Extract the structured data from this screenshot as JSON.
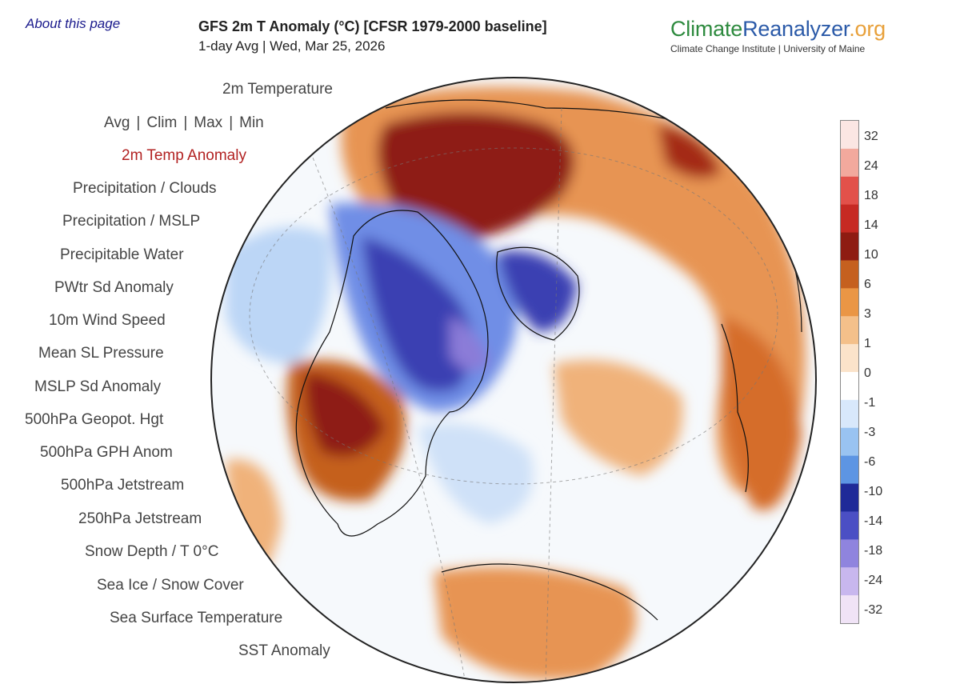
{
  "about": "About this page",
  "header": {
    "title": "GFS 2m T Anomaly (°C) [CFSR 1979-2000 baseline]",
    "subtitle": "1-day Avg | Wed, Mar 25, 2026"
  },
  "logo": {
    "climate": "Climate",
    "reanalyzer": "Reanalyzer",
    "org": ".org",
    "sub": "Climate Change Institute | University of Maine"
  },
  "menu": {
    "temperature": "2m Temperature",
    "avg": "Avg",
    "clim": "Clim",
    "max": "Max",
    "min": "Min",
    "sep": "|",
    "items": [
      "2m Temp Anomaly",
      "Precipitation / Clouds",
      "Precipitation / MSLP",
      "Precipitable Water",
      "PWtr Sd Anomaly",
      "10m Wind Speed",
      "Mean SL Pressure",
      "MSLP Sd Anomaly",
      "500hPa Geopot. Hgt",
      "500hPa GPH Anom",
      "500hPa Jetstream",
      "250hPa Jetstream",
      "Snow Depth / T 0°C",
      "Sea Ice / Snow Cover",
      "Sea Surface Temperature",
      "SST Anomaly"
    ]
  },
  "legend": {
    "labels": [
      "32",
      "24",
      "18",
      "14",
      "10",
      "6",
      "3",
      "1",
      "0",
      "-1",
      "-3",
      "-6",
      "-10",
      "-14",
      "-18",
      "-24",
      "-32"
    ],
    "colors": [
      "#fbe6e3",
      "#f2a99d",
      "#e2514a",
      "#c62a23",
      "#8e1c12",
      "#c5601f",
      "#ea9645",
      "#f4c08a",
      "#fbe3ca",
      "#ffffff",
      "#d8e8fb",
      "#99c3f1",
      "#5d95e3",
      "#1f2a98",
      "#4b4fc4",
      "#8f84de",
      "#c8b7ee",
      "#f0e3f6"
    ]
  },
  "colors": {
    "ocean_neutral": "#f6f9fc",
    "warm_dark": "#8e1c12",
    "warm": "#d56d2a",
    "warm_light": "#f0b27a",
    "cool_light": "#bcd6f6",
    "cool": "#6f8ee6",
    "cool_dark": "#3b3fb2",
    "cool_deepest": "#8b7cd8"
  }
}
